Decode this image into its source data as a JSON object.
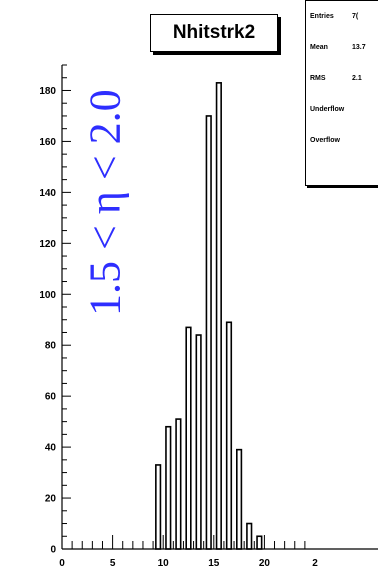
{
  "chart_data": {
    "type": "bar",
    "title": "Nhitstrk2",
    "annotation": "1.5 < η < 2.0",
    "xlabel": "",
    "ylabel": "",
    "xlim": [
      0,
      24
    ],
    "ylim": [
      0,
      190
    ],
    "x_ticks": [
      "0",
      "5",
      "10",
      "15",
      "20",
      "2"
    ],
    "y_ticks": [
      "0",
      "20",
      "40",
      "60",
      "80",
      "100",
      "120",
      "140",
      "160",
      "180"
    ],
    "x": [
      9,
      10,
      11,
      12,
      13,
      14,
      15,
      16,
      17,
      18,
      19
    ],
    "values": [
      33,
      48,
      51,
      87,
      84,
      170,
      183,
      89,
      39,
      10,
      5
    ],
    "grid": false,
    "legend": "none",
    "bar_color": "#ffffff",
    "edge_color": "#000000",
    "stats": [
      {
        "label": "Entries",
        "value": "7("
      },
      {
        "label": "Mean",
        "value": "13.7"
      },
      {
        "label": "RMS",
        "value": "2.1"
      },
      {
        "label": "Underflow",
        "value": ""
      },
      {
        "label": "Overflow",
        "value": ""
      }
    ]
  }
}
